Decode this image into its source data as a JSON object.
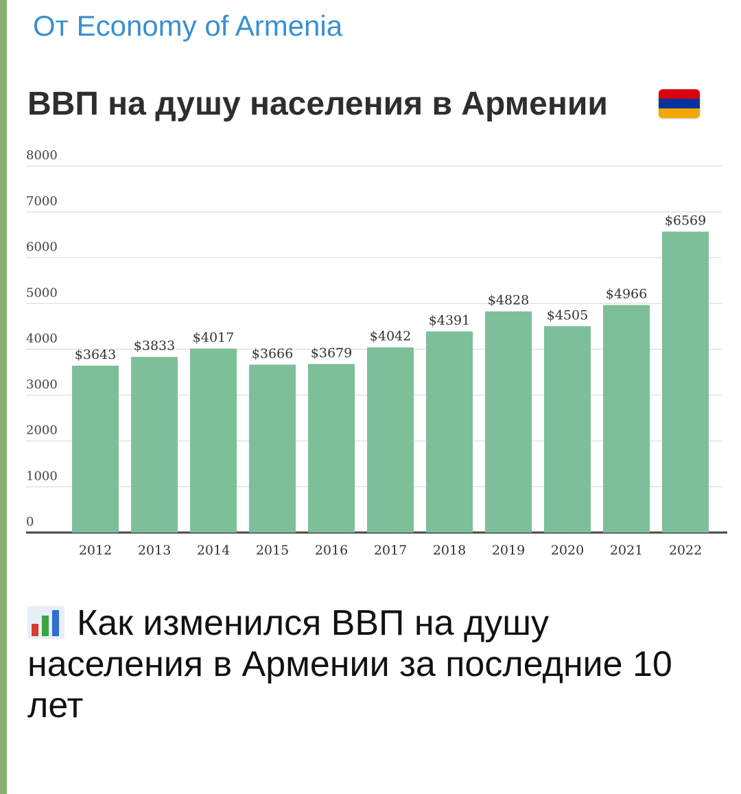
{
  "forward": {
    "prefix": "От",
    "source": "Economy of Armenia"
  },
  "chart_title": "ВВП на душу населения в Армении",
  "colors": {
    "bar": "#7dbf99",
    "link": "#3a8fd0",
    "flag_red": "#d90012",
    "flag_blue": "#0033a0",
    "flag_orange": "#f2a800"
  },
  "chart_data": {
    "type": "bar",
    "title": "ВВП на душу населения в Армении",
    "categories": [
      "2012",
      "2013",
      "2014",
      "2015",
      "2016",
      "2017",
      "2018",
      "2019",
      "2020",
      "2021",
      "2022"
    ],
    "values": [
      3643,
      3833,
      4017,
      3666,
      3679,
      4042,
      4391,
      4828,
      4505,
      4966,
      6569
    ],
    "data_labels": [
      "$3643",
      "$3833",
      "$4017",
      "$3666",
      "$3679",
      "$4042",
      "$4391",
      "$4828",
      "$4505",
      "$4966",
      "$6569"
    ],
    "yticks": [
      0,
      1000,
      2000,
      3000,
      4000,
      5000,
      6000,
      7000,
      8000
    ],
    "ylim": [
      0,
      8000
    ],
    "grid": true,
    "xlabel": "",
    "ylabel": ""
  },
  "caption": {
    "icon": "bar-chart-icon",
    "text": "Как изменился ВВП на душу населения в Армении за последние 10 лет"
  }
}
